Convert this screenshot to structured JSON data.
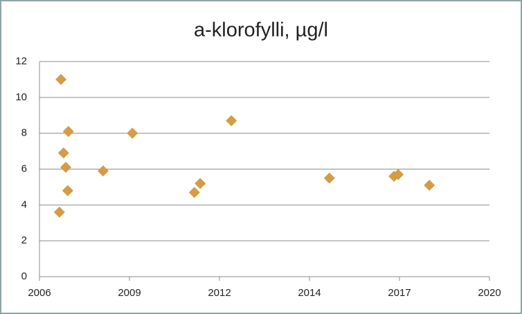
{
  "chart_data": {
    "type": "scatter",
    "title": "a-klorofylli, µg/l",
    "series": [
      {
        "color": "#d59b45",
        "x": [
          2006.67,
          2006.62,
          2006.75,
          2006.82,
          2006.9,
          2006.88,
          2007.98,
          2008.89,
          2010.82,
          2011.0,
          2011.97,
          2015.02,
          2017.03,
          2017.16,
          2018.13
        ],
        "values": [
          11.0,
          3.6,
          6.9,
          6.1,
          8.1,
          4.8,
          5.9,
          8.0,
          4.7,
          5.2,
          8.7,
          5.5,
          5.6,
          5.7,
          5.1
        ]
      }
    ],
    "xlim": [
      2006,
      2020
    ],
    "xticks": [
      2006,
      {
        "value": 2008.8,
        "label": "2009"
      },
      {
        "value": 2011.6,
        "label": "2012"
      },
      {
        "value": 2014.4,
        "label": "2014"
      },
      {
        "value": 2017.2,
        "label": "2017"
      },
      2020
    ],
    "ylim": [
      0,
      12
    ],
    "yticks": [
      0,
      2,
      4,
      6,
      8,
      10,
      12
    ],
    "grid": true
  }
}
